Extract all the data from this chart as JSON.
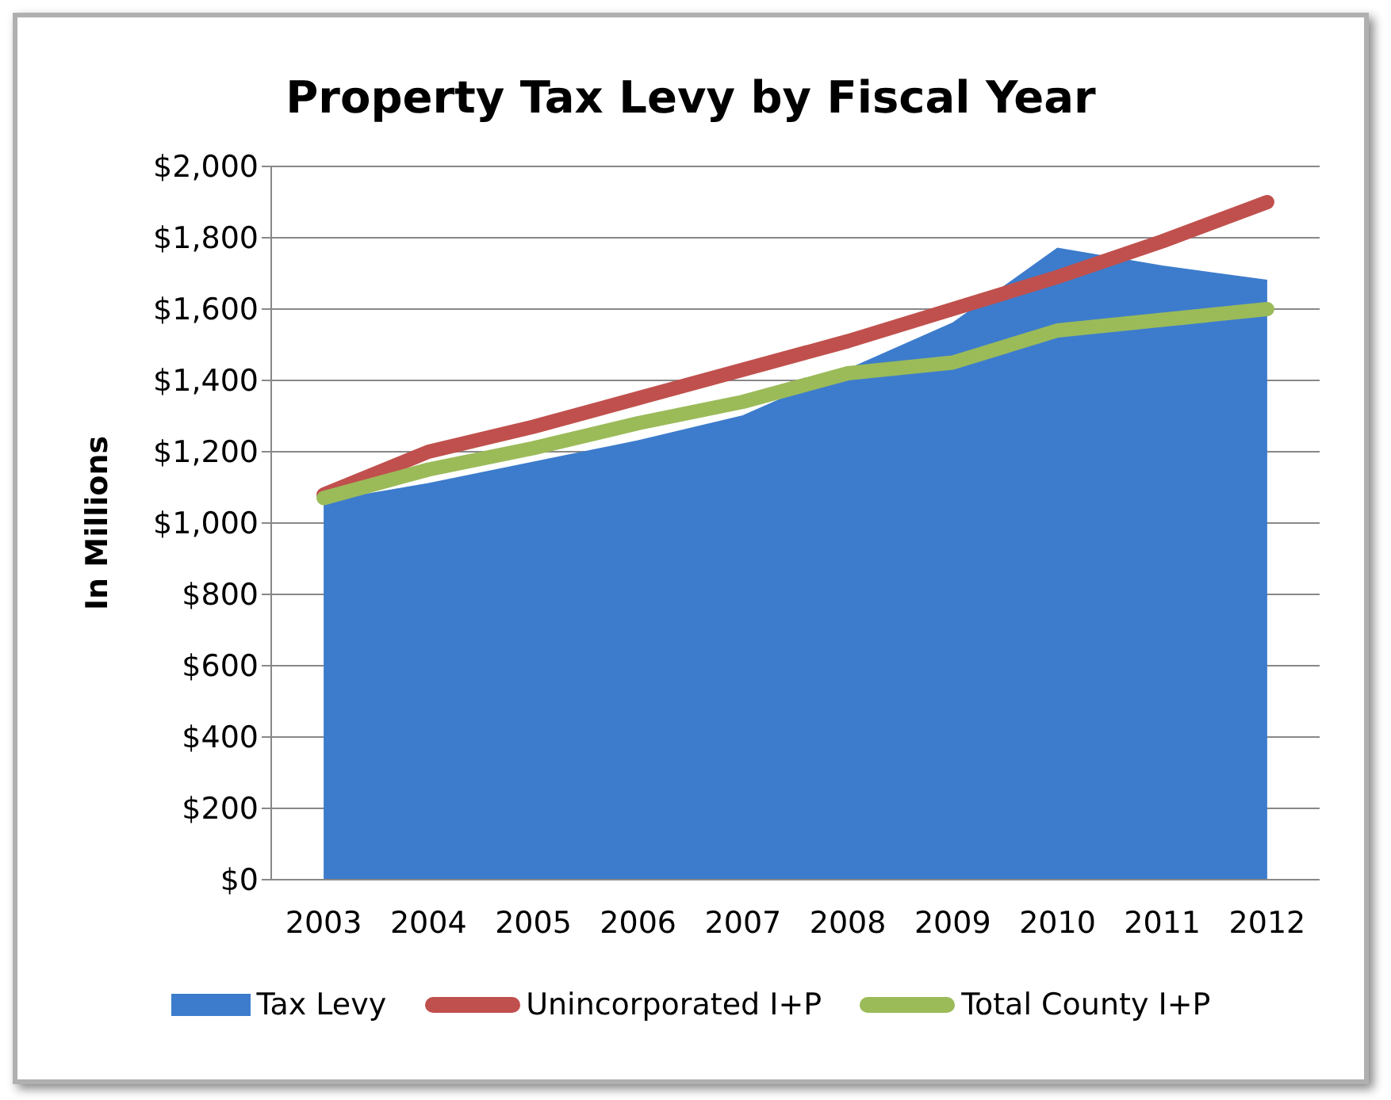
{
  "chart_data": {
    "type": "line",
    "title": "Property Tax Levy by Fiscal Year",
    "ylabel": "In Millions",
    "categories": [
      "2003",
      "2004",
      "2005",
      "2006",
      "2007",
      "2008",
      "2009",
      "2010",
      "2011",
      "2012"
    ],
    "series": [
      {
        "name": "Tax Levy",
        "type": "area",
        "color": "#3d7ccc",
        "values": [
          1060,
          1110,
          1170,
          1230,
          1300,
          1430,
          1560,
          1770,
          1720,
          1680
        ]
      },
      {
        "name": "Unincorporated I+P",
        "color": "#c0504d",
        "values": [
          1080,
          1200,
          1270,
          1350,
          1430,
          1510,
          1600,
          1690,
          1790,
          1900
        ]
      },
      {
        "name": "Total County I+P",
        "color": "#9bbb59",
        "values": [
          1070,
          1150,
          1210,
          1280,
          1340,
          1420,
          1450,
          1540,
          1570,
          1600
        ]
      }
    ],
    "ylim": [
      0,
      2000
    ],
    "yticks": [
      {
        "value": 0,
        "label": "$0"
      },
      {
        "value": 200,
        "label": "$200"
      },
      {
        "value": 400,
        "label": "$400"
      },
      {
        "value": 600,
        "label": "$600"
      },
      {
        "value": 800,
        "label": "$800"
      },
      {
        "value": 1000,
        "label": "$1,000"
      },
      {
        "value": 1200,
        "label": "$1,200"
      },
      {
        "value": 1400,
        "label": "$1,400"
      },
      {
        "value": 1600,
        "label": "$1,600"
      },
      {
        "value": 1800,
        "label": "$1,800"
      },
      {
        "value": 2000,
        "label": "$2,000"
      }
    ],
    "grid": "y",
    "legend": "bottom",
    "marker": "none",
    "line_style": "solid"
  }
}
